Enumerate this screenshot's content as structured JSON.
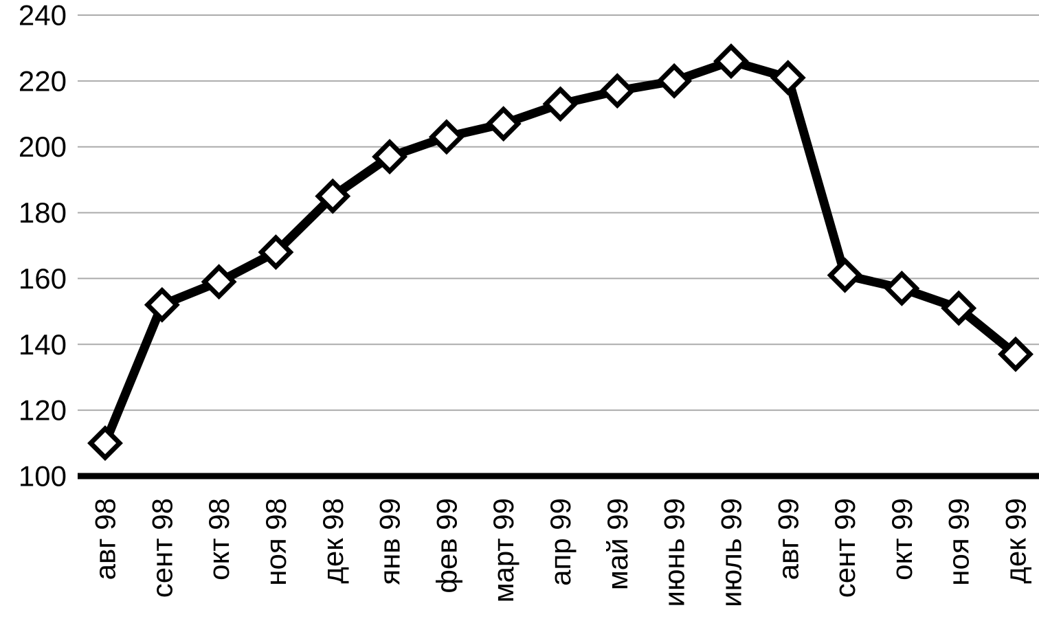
{
  "chart_data": {
    "type": "line",
    "categories": [
      "авг 98",
      "сент 98",
      "окт 98",
      "ноя 98",
      "дек 98",
      "янв 99",
      "фев 99",
      "март 99",
      "апр 99",
      "май 99",
      "июнь 99",
      "июль 99",
      "авг 99",
      "сент 99",
      "окт 99",
      "ноя 99",
      "дек 99"
    ],
    "values": [
      110,
      152,
      159,
      168,
      185,
      197,
      203,
      207,
      213,
      217,
      220,
      226,
      221,
      161,
      157,
      151,
      137
    ],
    "series_count": 1,
    "ylim": [
      100,
      240
    ],
    "yticks": [
      100,
      120,
      140,
      160,
      180,
      200,
      220,
      240
    ],
    "ytick_step": 20,
    "grid": true,
    "legend": false,
    "marker": "diamond",
    "colors": {
      "line": "#000000",
      "marker_fill": "#ffffff",
      "marker_stroke": "#000000",
      "gridline": "#ababab",
      "axis_line": "#000000",
      "tick_label": "#000000",
      "background": "#ffffff"
    }
  }
}
